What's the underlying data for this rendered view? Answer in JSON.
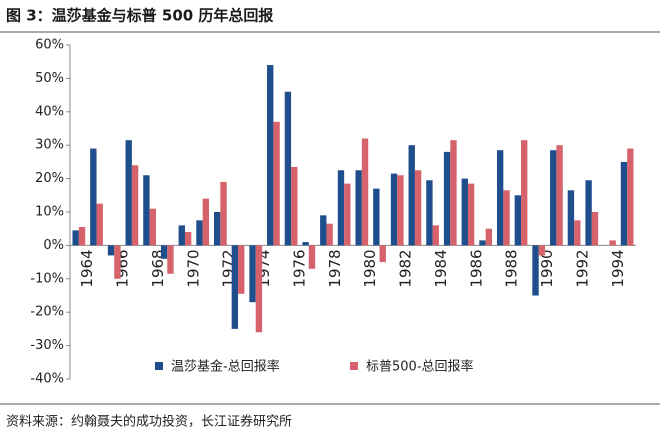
{
  "chart_data": {
    "type": "bar",
    "title": "图 3：温莎基金与标普 500 历年总回报",
    "source": "资料来源：约翰聂夫的成功投资，长江证券研究所",
    "categories": [
      "1964",
      null,
      "1966",
      null,
      "1968",
      null,
      "1970",
      null,
      "1972",
      null,
      "1974",
      null,
      "1976",
      null,
      "1978",
      null,
      "1980",
      null,
      "1982",
      null,
      "1984",
      null,
      "1986",
      null,
      "1988",
      null,
      "1990",
      null,
      "1992",
      null,
      "1994",
      null
    ],
    "series": [
      {
        "name": "温莎基金-总回报率",
        "color": "#1f4e8c",
        "values": [
          4.5,
          29,
          -3,
          31.5,
          21,
          -4,
          6,
          7.5,
          10,
          -25,
          -17,
          54,
          46,
          1,
          9,
          22.5,
          22.5,
          17,
          21.5,
          30,
          19.5,
          28,
          20,
          1.5,
          28.5,
          15,
          -15,
          28.5,
          16.5,
          19.5,
          0,
          25
        ]
      },
      {
        "name": "标普500-总回报率",
        "color": "#d6636c",
        "values": [
          5.5,
          12.5,
          -10,
          24,
          11,
          -8.5,
          4,
          14,
          19,
          -14.5,
          -26,
          37,
          23.5,
          -7,
          6.5,
          18.5,
          32,
          -5,
          21,
          22.5,
          6,
          31.5,
          18.5,
          5,
          16.5,
          31.5,
          -3,
          30,
          7.5,
          10,
          1.5,
          29
        ]
      }
    ],
    "ylim": [
      -40,
      60
    ],
    "yticks": [
      {
        "value": -40,
        "label": "-40%"
      },
      {
        "value": -30,
        "label": "-30%"
      },
      {
        "value": -20,
        "label": "-20%"
      },
      {
        "value": -10,
        "label": "-10%"
      },
      {
        "value": 0,
        "label": "0%"
      },
      {
        "value": 10,
        "label": "10%"
      },
      {
        "value": 20,
        "label": "20%"
      },
      {
        "value": 30,
        "label": "30%"
      },
      {
        "value": 40,
        "label": "40%"
      },
      {
        "value": 50,
        "label": "50%"
      },
      {
        "value": 60,
        "label": "60%"
      }
    ],
    "grid": false
  }
}
